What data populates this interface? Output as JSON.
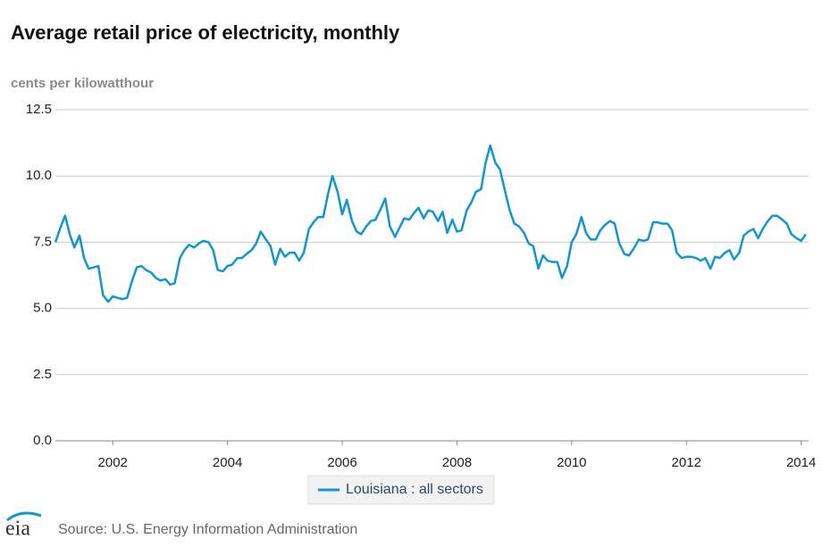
{
  "chart_data": {
    "type": "line",
    "title": "Average retail price of electricity, monthly",
    "y_axis_label": "cents per kilowatthour",
    "source": "Source: U.S. Energy Information Administration",
    "logo": "eia",
    "x": [
      2001,
      2001.08,
      2001.17,
      2001.25,
      2001.33,
      2001.42,
      2001.5,
      2001.58,
      2001.67,
      2001.75,
      2001.83,
      2001.92,
      2002,
      2002.08,
      2002.17,
      2002.25,
      2002.33,
      2002.42,
      2002.5,
      2002.58,
      2002.67,
      2002.75,
      2002.83,
      2002.92,
      2003,
      2003.08,
      2003.17,
      2003.25,
      2003.33,
      2003.42,
      2003.5,
      2003.58,
      2003.67,
      2003.75,
      2003.83,
      2003.92,
      2004,
      2004.08,
      2004.17,
      2004.25,
      2004.33,
      2004.42,
      2004.5,
      2004.58,
      2004.67,
      2004.75,
      2004.83,
      2004.92,
      2005,
      2005.08,
      2005.17,
      2005.25,
      2005.33,
      2005.42,
      2005.5,
      2005.58,
      2005.67,
      2005.75,
      2005.83,
      2005.92,
      2006,
      2006.08,
      2006.17,
      2006.25,
      2006.33,
      2006.42,
      2006.5,
      2006.58,
      2006.67,
      2006.75,
      2006.83,
      2006.92,
      2007,
      2007.08,
      2007.17,
      2007.25,
      2007.33,
      2007.42,
      2007.5,
      2007.58,
      2007.67,
      2007.75,
      2007.83,
      2007.92,
      2008,
      2008.08,
      2008.17,
      2008.25,
      2008.33,
      2008.42,
      2008.5,
      2008.58,
      2008.67,
      2008.75,
      2008.83,
      2008.92,
      2009,
      2009.08,
      2009.17,
      2009.25,
      2009.33,
      2009.42,
      2009.5,
      2009.58,
      2009.67,
      2009.75,
      2009.83,
      2009.92,
      2010,
      2010.08,
      2010.17,
      2010.25,
      2010.33,
      2010.42,
      2010.5,
      2010.58,
      2010.67,
      2010.75,
      2010.83,
      2010.92,
      2011,
      2011.08,
      2011.17,
      2011.25,
      2011.33,
      2011.42,
      2011.5,
      2011.58,
      2011.67,
      2011.75,
      2011.83,
      2011.92,
      2012,
      2012.08,
      2012.17,
      2012.25,
      2012.33,
      2012.42,
      2012.5,
      2012.58,
      2012.67,
      2012.75,
      2012.83,
      2012.92,
      2013,
      2013.08,
      2013.17,
      2013.25,
      2013.33,
      2013.42,
      2013.5,
      2013.58,
      2013.67,
      2013.75,
      2013.83,
      2013.92,
      2014,
      2014.08
    ],
    "series": [
      {
        "name": "Louisiana : all sectors",
        "color": "#0f96d6",
        "values": [
          7.5,
          8.0,
          8.5,
          7.8,
          7.3,
          7.75,
          6.9,
          6.5,
          6.55,
          6.6,
          5.5,
          5.25,
          5.45,
          5.4,
          5.35,
          5.4,
          6.0,
          6.55,
          6.6,
          6.45,
          6.35,
          6.15,
          6.05,
          6.1,
          5.9,
          5.95,
          6.9,
          7.2,
          7.4,
          7.3,
          7.45,
          7.55,
          7.5,
          7.2,
          6.45,
          6.4,
          6.6,
          6.65,
          6.9,
          6.9,
          7.05,
          7.2,
          7.45,
          7.9,
          7.6,
          7.35,
          6.65,
          7.25,
          6.95,
          7.1,
          7.1,
          6.8,
          7.1,
          8.0,
          8.25,
          8.45,
          8.45,
          9.3,
          10.0,
          9.4,
          8.55,
          9.1,
          8.3,
          7.9,
          7.8,
          8.1,
          8.3,
          8.35,
          8.75,
          9.15,
          8.1,
          7.7,
          8.05,
          8.4,
          8.35,
          8.6,
          8.8,
          8.4,
          8.7,
          8.65,
          8.3,
          8.65,
          7.85,
          8.35,
          7.9,
          7.95,
          8.7,
          9.0,
          9.4,
          9.5,
          10.5,
          11.15,
          10.5,
          10.25,
          9.5,
          8.7,
          8.2,
          8.1,
          7.85,
          7.45,
          7.35,
          6.5,
          7.0,
          6.8,
          6.75,
          6.75,
          6.15,
          6.6,
          7.5,
          7.8,
          8.45,
          7.85,
          7.6,
          7.6,
          7.95,
          8.15,
          8.3,
          8.2,
          7.45,
          7.05,
          7.0,
          7.25,
          7.6,
          7.55,
          7.6,
          8.25,
          8.25,
          8.2,
          8.2,
          7.95,
          7.1,
          6.9,
          6.95,
          6.95,
          6.9,
          6.8,
          6.9,
          6.5,
          6.95,
          6.9,
          7.1,
          7.2,
          6.85,
          7.1,
          7.75,
          7.9,
          8.0,
          7.65,
          8.0,
          8.3,
          8.5,
          8.5,
          8.35,
          8.2,
          7.8,
          7.65,
          7.55,
          7.8
        ]
      }
    ],
    "xlim": [
      2001,
      2014.13
    ],
    "xticks": [
      2002,
      2004,
      2006,
      2008,
      2010,
      2012,
      2014
    ],
    "ylim": [
      0,
      12.5
    ],
    "yticks": [
      {
        "value": 0,
        "label": "0.0"
      },
      2.5,
      {
        "value": 5,
        "label": "5.0"
      },
      7.5,
      {
        "value": 10,
        "label": "10.0"
      },
      12.5
    ],
    "grid": true,
    "legend": "bottom"
  }
}
